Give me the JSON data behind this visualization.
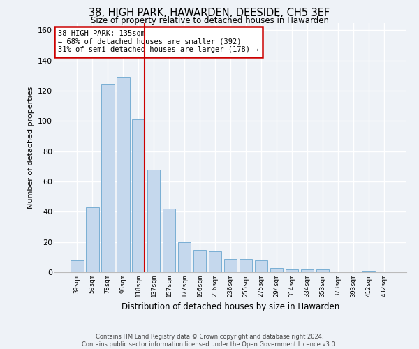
{
  "title_line1": "38, HIGH PARK, HAWARDEN, DEESIDE, CH5 3EF",
  "title_line2": "Size of property relative to detached houses in Hawarden",
  "xlabel": "Distribution of detached houses by size in Hawarden",
  "ylabel": "Number of detached properties",
  "categories": [
    "39sqm",
    "59sqm",
    "78sqm",
    "98sqm",
    "118sqm",
    "137sqm",
    "157sqm",
    "177sqm",
    "196sqm",
    "216sqm",
    "236sqm",
    "255sqm",
    "275sqm",
    "294sqm",
    "314sqm",
    "334sqm",
    "353sqm",
    "373sqm",
    "393sqm",
    "412sqm",
    "432sqm"
  ],
  "values": [
    8,
    43,
    124,
    129,
    101,
    68,
    42,
    20,
    15,
    14,
    9,
    9,
    8,
    3,
    2,
    2,
    2,
    0,
    0,
    1,
    0
  ],
  "bar_color": "#c5d8ed",
  "bar_edge_color": "#7aafd4",
  "vline_color": "#cc0000",
  "annotation_box_color": "#cc0000",
  "annotation_title": "38 HIGH PARK: 135sqm",
  "annotation_line2": "← 68% of detached houses are smaller (392)",
  "annotation_line3": "31% of semi-detached houses are larger (178) →",
  "vline_bin_index": 4,
  "ylim": [
    0,
    165
  ],
  "yticks": [
    0,
    20,
    40,
    60,
    80,
    100,
    120,
    140,
    160
  ],
  "footer_line1": "Contains HM Land Registry data © Crown copyright and database right 2024.",
  "footer_line2": "Contains public sector information licensed under the Open Government Licence v3.0.",
  "background_color": "#eef2f7",
  "grid_color": "#ffffff"
}
